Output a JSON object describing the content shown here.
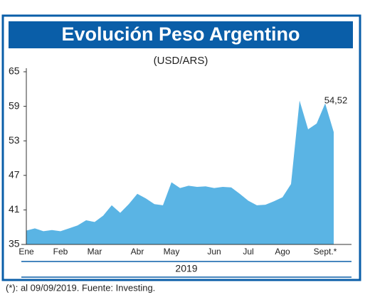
{
  "chart_data": {
    "type": "area",
    "title": "Evolución Peso Argentino",
    "subtitle": "(USD/ARS)",
    "x_label": "2019",
    "footnote": "(*): al 09/09/2019. Fuente: Investing.",
    "categories": [
      "Ene",
      null,
      null,
      null,
      "Feb",
      null,
      null,
      null,
      "Mar",
      null,
      null,
      null,
      null,
      "Abr",
      null,
      null,
      null,
      "May",
      null,
      null,
      null,
      null,
      "Jun",
      null,
      null,
      null,
      "Jul",
      null,
      null,
      null,
      "Ago",
      null,
      null,
      null,
      null,
      "Sept.*",
      null
    ],
    "values": [
      37.4,
      37.8,
      37.3,
      37.5,
      37.3,
      37.8,
      38.3,
      39.2,
      38.9,
      40.0,
      41.8,
      40.5,
      42.0,
      43.8,
      43.0,
      42.0,
      41.8,
      45.8,
      44.8,
      45.2,
      45.0,
      45.1,
      44.8,
      45.0,
      44.9,
      43.8,
      42.6,
      41.8,
      41.9,
      42.5,
      43.2,
      45.5,
      60.0,
      55.0,
      56.0,
      59.5,
      54.52
    ],
    "annotation": {
      "value": 54.52,
      "label": "54,52"
    },
    "color": "#5ab4e4",
    "ylim": [
      35,
      65
    ],
    "yticks": [
      35,
      41,
      47,
      53,
      59,
      65
    ]
  }
}
